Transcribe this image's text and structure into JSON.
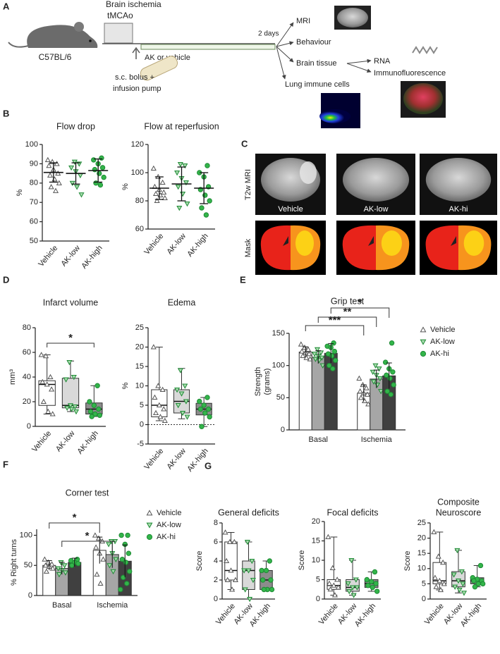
{
  "panel_a": {
    "letter": "A",
    "ischemia_title": "Brain ischemia",
    "ischemia_sub": "tMCAo",
    "strain": "C57BL/6",
    "treatment": "AK or vehicle",
    "delivery_lines": [
      "s.c. bolus +",
      "infusion pump"
    ],
    "duration": "2 days",
    "outcomes": [
      "MRI",
      "Behaviour",
      "Brain tissue",
      "Lung immune cells"
    ],
    "tissue_outcomes": [
      "RNA",
      "Immunofluorescence"
    ]
  },
  "panel_c": {
    "letter": "C",
    "rows": [
      "T2w MRI",
      "Mask"
    ],
    "columns": [
      "Vehicle",
      "AK-low",
      "AK-hi"
    ]
  },
  "chart_data": [
    {
      "type": "dot",
      "panel": "B",
      "title": "Flow drop",
      "ylabel": "%",
      "categories": [
        "Vehicle",
        "AK-low",
        "AK-high"
      ],
      "ylim": [
        50,
        100
      ],
      "yticks": [
        50,
        60,
        70,
        80,
        90,
        100
      ],
      "values": [
        85.5,
        85,
        86.5
      ],
      "errors": [
        5,
        5.5,
        6
      ],
      "points": [
        [
          92,
          91,
          90,
          89,
          87,
          85,
          84,
          82,
          80,
          78,
          76
        ],
        [
          91,
          90,
          88,
          86,
          84,
          80,
          78,
          74
        ],
        [
          93,
          92,
          90,
          88,
          87,
          85,
          83,
          80,
          79
        ]
      ],
      "markers": [
        "triangle",
        "triangle-down",
        "circle"
      ],
      "marker_colors": [
        "#ffffff",
        "#a8dcae",
        "#33b54a"
      ]
    },
    {
      "type": "dot",
      "title": "Flow at reperfusion",
      "ylabel": "%",
      "categories": [
        "Vehicle",
        "AK-low",
        "AK-high"
      ],
      "ylim": [
        60,
        120
      ],
      "yticks": [
        60,
        80,
        100,
        120
      ],
      "values": [
        89,
        92,
        89
      ],
      "errors": [
        8,
        12,
        11
      ],
      "points": [
        [
          103,
          97,
          93,
          90,
          88,
          86,
          85,
          84,
          82,
          80
        ],
        [
          106,
          105,
          100,
          96,
          93,
          90,
          85,
          78,
          75
        ],
        [
          105,
          100,
          97,
          90,
          88,
          84,
          80,
          75,
          70
        ]
      ],
      "markers": [
        "triangle",
        "triangle-down",
        "circle"
      ],
      "marker_colors": [
        "#ffffff",
        "#a8dcae",
        "#33b54a"
      ]
    },
    {
      "type": "box",
      "panel": "D",
      "title": "Infarct volume",
      "ylabel": "mm³",
      "categories": [
        "Vehicle",
        "AK-low",
        "AK-high"
      ],
      "ylim": [
        0,
        80
      ],
      "yticks": [
        0,
        20,
        40,
        60,
        80
      ],
      "min": [
        10,
        12,
        8
      ],
      "q1": [
        17,
        15,
        10
      ],
      "median": [
        34,
        17,
        14
      ],
      "q3": [
        37,
        39,
        19
      ],
      "max": [
        58,
        53,
        33
      ],
      "points": [
        [
          58,
          57,
          40,
          36,
          34,
          30,
          20,
          12,
          10
        ],
        [
          52,
          40,
          38,
          17,
          16,
          15,
          14,
          12
        ],
        [
          33,
          20,
          17,
          14,
          12,
          10,
          9,
          8
        ]
      ],
      "box_colors": [
        "#ffffff",
        "#d9d9d9",
        "#8c8c8c"
      ],
      "annotations": [
        "*"
      ],
      "markers": [
        "triangle",
        "triangle-down",
        "circle"
      ],
      "marker_colors": [
        "#ffffff",
        "#a8dcae",
        "#33b54a"
      ]
    },
    {
      "type": "box",
      "title": "Edema",
      "ylabel": "%",
      "categories": [
        "Vehicle",
        "AK-low",
        "AK-high"
      ],
      "ylim": [
        -5,
        25
      ],
      "yticks": [
        -5,
        0,
        5,
        10,
        15,
        20,
        25
      ],
      "zero_line": true,
      "min": [
        1,
        1.5,
        -0.5
      ],
      "q1": [
        2,
        3,
        2.5
      ],
      "median": [
        5,
        6,
        4
      ],
      "q3": [
        9,
        9,
        5.5
      ],
      "max": [
        20,
        14.5,
        7
      ],
      "points": [
        [
          20,
          10,
          9,
          7,
          5,
          4,
          3,
          2,
          1
        ],
        [
          14,
          10,
          9,
          8,
          6,
          5,
          3,
          2
        ],
        [
          7,
          6,
          5,
          4,
          4,
          3,
          2,
          -0.5
        ]
      ],
      "box_colors": [
        "#ffffff",
        "#d9d9d9",
        "#8c8c8c"
      ],
      "markers": [
        "triangle",
        "triangle-down",
        "circle"
      ],
      "marker_colors": [
        "#ffffff",
        "#a8dcae",
        "#33b54a"
      ]
    },
    {
      "type": "groupbar",
      "panel": "E",
      "title": "Grip test",
      "ylabel_lines": [
        "Strength",
        "(grams)"
      ],
      "categories": [
        "Basal",
        "Ischemia"
      ],
      "ylim": [
        0,
        150
      ],
      "yticks": [
        0,
        50,
        100,
        150
      ],
      "annotations": [
        "***",
        "**",
        "*"
      ],
      "legend": "right",
      "series": [
        {
          "name": "Vehicle",
          "color": "#ffffff",
          "marker": "triangle",
          "marker_color": "#ffffff",
          "values": [
            121,
            57
          ],
          "errors": [
            8,
            13
          ],
          "points": [
            [
              133,
              128,
              125,
              122,
              120,
              118,
              115,
              112,
              110
            ],
            [
              80,
              70,
              65,
              60,
              57,
              55,
              50,
              45,
              40
            ]
          ]
        },
        {
          "name": "AK-low",
          "color": "#a6a6a6",
          "marker": "triangle-down",
          "marker_color": "#a8dcae",
          "values": [
            113,
            79
          ],
          "errors": [
            10,
            14
          ],
          "points": [
            [
              125,
              120,
              118,
              115,
              112,
              110,
              108,
              100
            ],
            [
              100,
              95,
              90,
              85,
              80,
              75,
              70,
              60
            ]
          ]
        },
        {
          "name": "AK-hi",
          "color": "#404040",
          "marker": "circle",
          "marker_color": "#33b54a",
          "values": [
            119,
            84
          ],
          "errors": [
            15,
            20
          ],
          "points": [
            [
              135,
              130,
              128,
              122,
              118,
              115,
              108,
              100,
              95
            ],
            [
              135,
              105,
              95,
              90,
              85,
              80,
              70,
              60,
              55
            ]
          ]
        }
      ]
    },
    {
      "type": "groupbar",
      "panel": "F",
      "title": "Corner test",
      "ylabel": "% Right turns",
      "categories": [
        "Basal",
        "Ischemia"
      ],
      "ylim": [
        0,
        110
      ],
      "yticks": [
        0,
        50,
        100
      ],
      "annotations": [
        "*",
        "*"
      ],
      "legend": "right",
      "series": [
        {
          "name": "Vehicle",
          "color": "#ffffff",
          "marker": "triangle",
          "marker_color": "#ffffff",
          "values": [
            50,
            75
          ],
          "errors": [
            8,
            22
          ],
          "points": [
            [
              60,
              55,
              52,
              50,
              48,
              45,
              40
            ],
            [
              100,
              95,
              90,
              80,
              70,
              60,
              35,
              20
            ]
          ]
        },
        {
          "name": "AK-low",
          "color": "#a6a6a6",
          "marker": "triangle-down",
          "marker_color": "#a8dcae",
          "values": [
            45,
            68
          ],
          "errors": [
            10,
            22
          ],
          "points": [
            [
              55,
              50,
              45,
              42,
              38,
              35
            ],
            [
              90,
              90,
              85,
              70,
              60,
              50,
              40
            ]
          ]
        },
        {
          "name": "AK-hi",
          "color": "#404040",
          "marker": "circle",
          "marker_color": "#33b54a",
          "values": [
            55,
            57
          ],
          "errors": [
            7,
            27
          ],
          "points": [
            [
              60,
              58,
              55,
              53,
              50
            ],
            [
              100,
              100,
              85,
              70,
              60,
              55,
              40,
              30,
              20,
              10
            ]
          ]
        }
      ]
    },
    {
      "type": "box",
      "panel": "G",
      "title": "General deficits",
      "ylabel": "Score",
      "categories": [
        "Vehicle",
        "AK-low",
        "AK-high"
      ],
      "ylim": [
        0,
        8
      ],
      "yticks": [
        0,
        2,
        4,
        6,
        8
      ],
      "min": [
        1,
        0,
        1
      ],
      "q1": [
        2,
        1,
        1
      ],
      "median": [
        3,
        3,
        2
      ],
      "q3": [
        6,
        4,
        3
      ],
      "max": [
        7,
        6,
        4
      ],
      "points": [
        [
          7,
          6,
          6,
          4,
          3,
          2,
          2,
          1
        ],
        [
          6,
          4,
          3,
          3,
          2,
          1,
          0
        ],
        [
          4,
          3,
          3,
          2,
          2,
          1,
          1,
          1
        ]
      ],
      "box_colors": [
        "#ffffff",
        "#d9d9d9",
        "#8c8c8c"
      ],
      "markers": [
        "triangle",
        "triangle-down",
        "circle"
      ],
      "marker_colors": [
        "#ffffff",
        "#a8dcae",
        "#33b54a"
      ]
    },
    {
      "type": "box",
      "title": "Focal deficits",
      "ylabel": "Score",
      "categories": [
        "Vehicle",
        "AK-low",
        "AK-high"
      ],
      "ylim": [
        0,
        20
      ],
      "yticks": [
        0,
        5,
        10,
        15,
        20
      ],
      "min": [
        1,
        1,
        2
      ],
      "q1": [
        2.5,
        2,
        3
      ],
      "median": [
        3.5,
        3,
        4
      ],
      "q3": [
        5,
        5,
        5
      ],
      "max": [
        16,
        10,
        7
      ],
      "points": [
        [
          16,
          8,
          5,
          4,
          3.5,
          3,
          2.5,
          1
        ],
        [
          10,
          5,
          4,
          3,
          3,
          2,
          1
        ],
        [
          7,
          5,
          4.5,
          4,
          3.5,
          3,
          2
        ]
      ],
      "box_colors": [
        "#ffffff",
        "#d9d9d9",
        "#8c8c8c"
      ],
      "markers": [
        "triangle",
        "triangle-down",
        "circle"
      ],
      "marker_colors": [
        "#ffffff",
        "#a8dcae",
        "#33b54a"
      ]
    },
    {
      "type": "box",
      "title_lines": [
        "Composite",
        "Neuroscore"
      ],
      "ylabel": "Score",
      "categories": [
        "Vehicle",
        "AK-low",
        "AK-high"
      ],
      "ylim": [
        0,
        25
      ],
      "yticks": [
        0,
        5,
        10,
        15,
        20,
        25
      ],
      "min": [
        3,
        2,
        4
      ],
      "q1": [
        5,
        4,
        5
      ],
      "median": [
        6,
        6,
        6
      ],
      "q3": [
        12,
        9,
        7
      ],
      "max": [
        22,
        16,
        11
      ],
      "points": [
        [
          22,
          14,
          12,
          7,
          6,
          5,
          4,
          3
        ],
        [
          16,
          9,
          8,
          6,
          5,
          4,
          3,
          2
        ],
        [
          11,
          7,
          6.5,
          6,
          6,
          5,
          5,
          4
        ]
      ],
      "box_colors": [
        "#ffffff",
        "#d9d9d9",
        "#8c8c8c"
      ],
      "markers": [
        "triangle",
        "triangle-down",
        "circle"
      ],
      "marker_colors": [
        "#ffffff",
        "#a8dcae",
        "#33b54a"
      ]
    }
  ]
}
